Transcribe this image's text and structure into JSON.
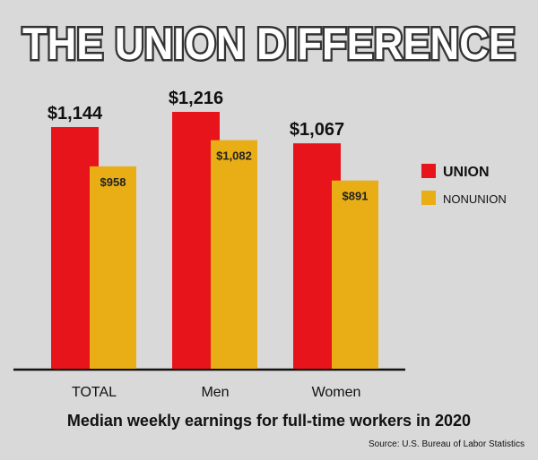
{
  "chart_data": {
    "type": "bar",
    "title": "THE UNION DIFFERENCE",
    "subtitle": "Median weekly earnings for full-time workers in 2020",
    "source": "Source: U.S. Bureau of Labor Statistics",
    "categories": [
      "TOTAL",
      "Men",
      "Women"
    ],
    "series": [
      {
        "name": "UNION",
        "color": "#e8141b",
        "values": [
          1144,
          1216,
          1067
        ],
        "value_labels": [
          "$1,144",
          "$1,216",
          "$1,067"
        ]
      },
      {
        "name": "NONUNION",
        "color": "#e9ae16",
        "values": [
          958,
          1082,
          891
        ],
        "value_labels": [
          "$958",
          "$1,082",
          "$891"
        ]
      }
    ],
    "legend": "right"
  }
}
